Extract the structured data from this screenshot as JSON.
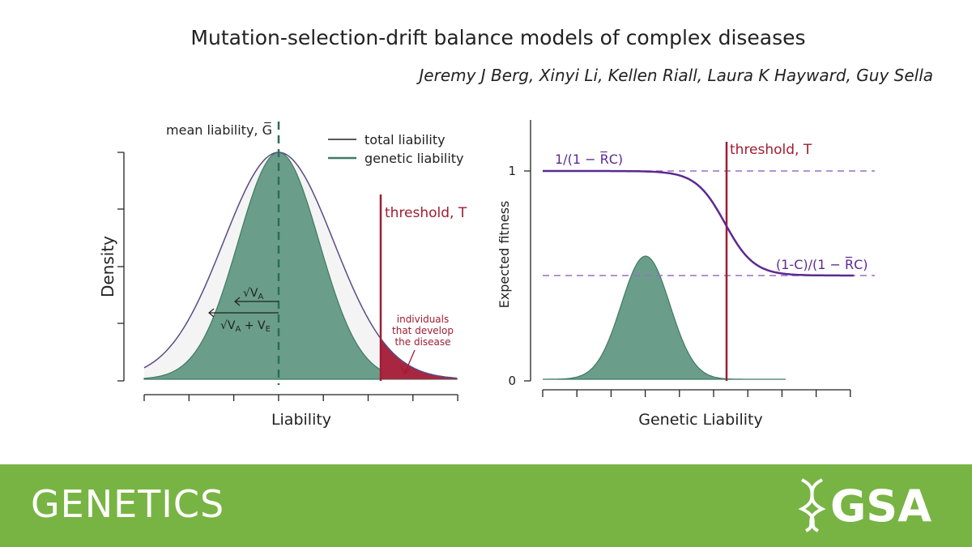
{
  "header": {
    "title": "Mutation-selection-drift balance models of complex diseases",
    "authors": "Jeremy J Berg, Xinyi Li, Kellen Riall, Laura K Hayward, Guy Sella"
  },
  "left_panel": {
    "y_label": "Density",
    "x_label": "Liability",
    "mean_label": "mean liability, G̅",
    "legend": [
      "total liability",
      "genetic liability"
    ],
    "threshold_label": "threshold, T",
    "sd_genetic": {
      "base": "√V",
      "sub": "A"
    },
    "sd_total": {
      "base": "√V",
      "sub1": "A",
      "plus": " + V",
      "sub2": "E"
    },
    "annotation": [
      "individuals",
      "that develop",
      "the disease"
    ]
  },
  "right_panel": {
    "y_label": "Expected fitness",
    "x_label": "Genetic Liability",
    "y_tick_labels": [
      "1",
      "0"
    ],
    "upper_label": "1/(1 − R̅C)",
    "lower_label": "(1-C)/(1 − R̅C)",
    "threshold_label": "threshold, T"
  },
  "footer": {
    "journal": "GENETICS",
    "society": "GSA"
  }
}
